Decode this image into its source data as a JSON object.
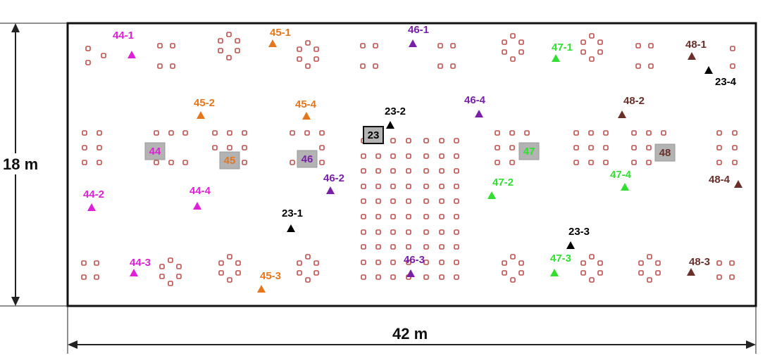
{
  "dimensions": {
    "width_label": "42 m",
    "height_label": "18 m"
  },
  "colors": {
    "room_border": "#111111",
    "dot_fill": "#ffffff",
    "dot_stroke": "#c0504d",
    "node_box": "#b3b3b3",
    "group_44": "#e020d8",
    "group_45": "#e5761c",
    "group_46": "#7a1fa8",
    "group_47": "#30e030",
    "group_48": "#6b2f2a",
    "group_23": "#000000"
  },
  "nodes": [
    {
      "id": "44",
      "group": "group_44"
    },
    {
      "id": "45",
      "group": "group_45"
    },
    {
      "id": "46",
      "group": "group_46"
    },
    {
      "id": "47",
      "group": "group_47"
    },
    {
      "id": "48",
      "group": "group_48"
    },
    {
      "id": "23",
      "group": "group_23"
    }
  ],
  "sensors": [
    {
      "label": "44-1",
      "group": "group_44"
    },
    {
      "label": "44-2",
      "group": "group_44"
    },
    {
      "label": "44-3",
      "group": "group_44"
    },
    {
      "label": "44-4",
      "group": "group_44"
    },
    {
      "label": "45-1",
      "group": "group_45"
    },
    {
      "label": "45-2",
      "group": "group_45"
    },
    {
      "label": "45-3",
      "group": "group_45"
    },
    {
      "label": "45-4",
      "group": "group_45"
    },
    {
      "label": "46-1",
      "group": "group_46"
    },
    {
      "label": "46-2",
      "group": "group_46"
    },
    {
      "label": "46-3",
      "group": "group_46"
    },
    {
      "label": "46-4",
      "group": "group_46"
    },
    {
      "label": "47-1",
      "group": "group_47"
    },
    {
      "label": "47-2",
      "group": "group_47"
    },
    {
      "label": "47-3",
      "group": "group_47"
    },
    {
      "label": "47-4",
      "group": "group_47"
    },
    {
      "label": "48-1",
      "group": "group_48"
    },
    {
      "label": "48-2",
      "group": "group_48"
    },
    {
      "label": "48-3",
      "group": "group_48"
    },
    {
      "label": "48-4",
      "group": "group_48"
    },
    {
      "label": "23-1",
      "group": "group_23"
    },
    {
      "label": "23-2",
      "group": "group_23"
    },
    {
      "label": "23-3",
      "group": "group_23"
    },
    {
      "label": "23-4",
      "group": "group_23"
    }
  ]
}
